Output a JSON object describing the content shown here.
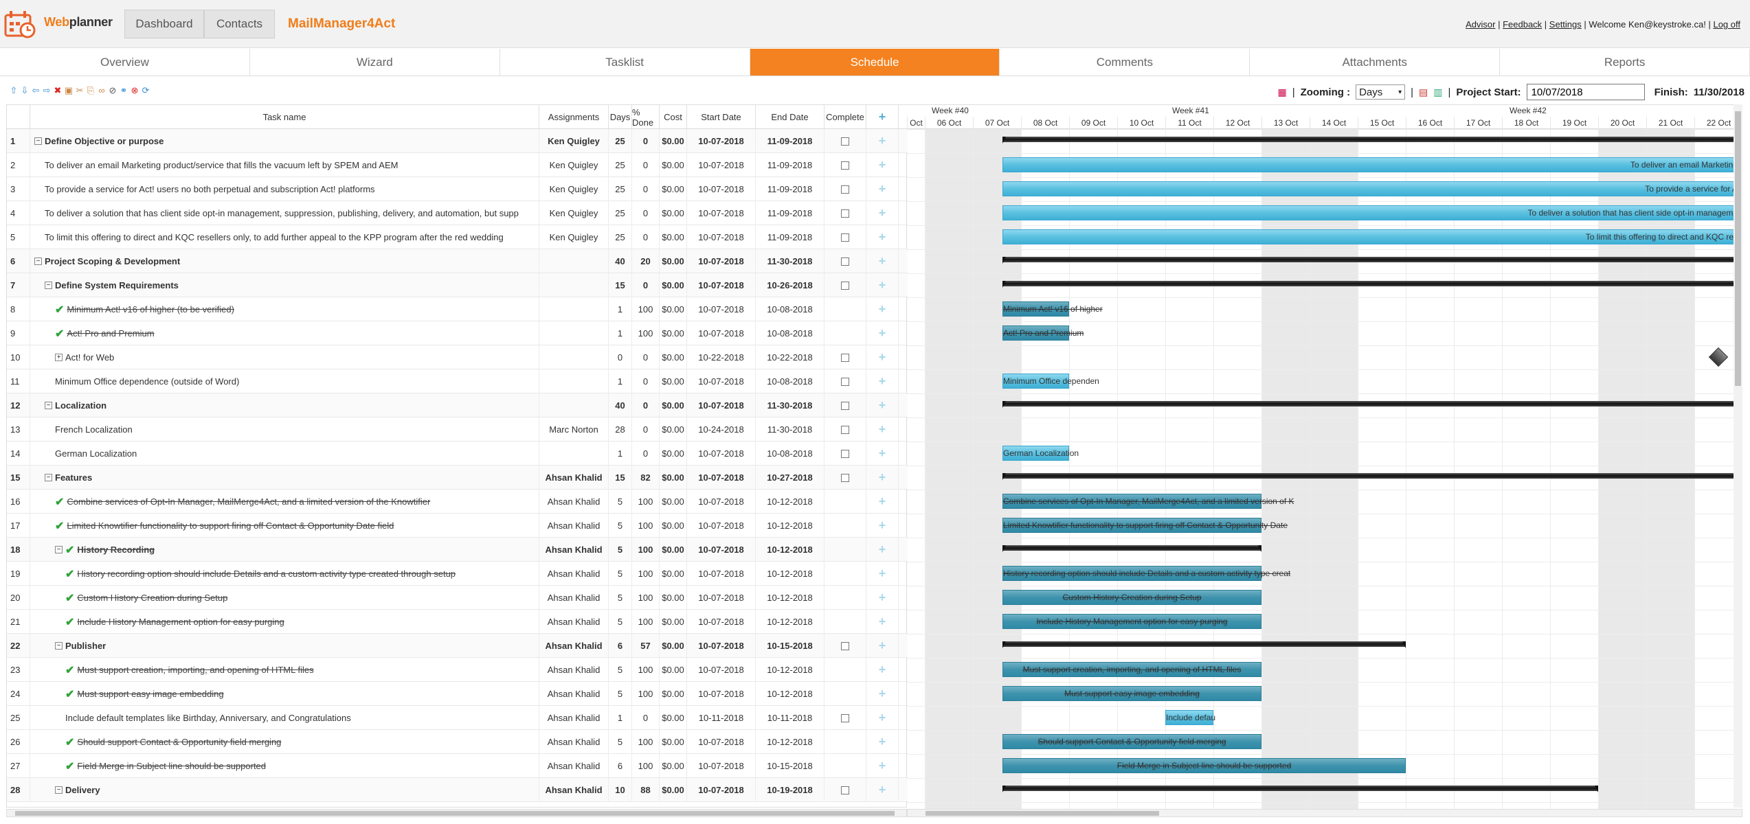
{
  "brand": {
    "logo_text_a": "Web",
    "logo_text_b": "planner",
    "app_title": "MailManager4Act"
  },
  "topnav": {
    "dashboard": "Dashboard",
    "contacts": "Contacts"
  },
  "user_links": {
    "advisor": "Advisor",
    "feedback": "Feedback",
    "settings": "Settings",
    "welcome": "Welcome Ken@keystroke.ca!",
    "logoff": "Log off"
  },
  "tabs": [
    {
      "label": "Overview"
    },
    {
      "label": "Wizard"
    },
    {
      "label": "Tasklist"
    },
    {
      "label": "Schedule",
      "active": true
    },
    {
      "label": "Comments"
    },
    {
      "label": "Attachments"
    },
    {
      "label": "Reports"
    }
  ],
  "toolbar": {
    "icons": [
      "move-up-icon",
      "move-down-icon",
      "outdent-icon",
      "indent-icon",
      "delete-icon",
      "copy-icon",
      "cut-icon",
      "paste-icon",
      "link-icon",
      "unlink-icon",
      "chain-icon",
      "remove-link-icon",
      "refresh-icon"
    ],
    "zooming_label": "Zooming :",
    "zoom_value": "Days",
    "project_start_label": "Project Start:",
    "project_start_value": "10/07/2018",
    "finish_label": "Finish:",
    "finish_value": "11/30/2018"
  },
  "grid": {
    "headers": {
      "name": "Task name",
      "assignments": "Assignments",
      "days": "Days",
      "pct": "% Done",
      "cost": "Cost",
      "start": "Start Date",
      "end": "End Date",
      "complete": "Complete"
    },
    "rows": [
      {
        "num": "1",
        "level": 0,
        "exp": "−",
        "name": "Define Objective or purpose",
        "asg": "Ken Quigley",
        "days": "25",
        "pct": "0",
        "cost": "$0.00",
        "start": "10-07-2018",
        "end": "11-09-2018",
        "summary": true,
        "done": false,
        "box": true
      },
      {
        "num": "2",
        "level": 1,
        "name": "To deliver an email Marketing product/service that fills the vacuum left by SPEM and AEM",
        "asg": "Ken Quigley",
        "days": "25",
        "pct": "0",
        "cost": "$0.00",
        "start": "10-07-2018",
        "end": "11-09-2018",
        "box": true
      },
      {
        "num": "3",
        "level": 1,
        "name": "To provide a service for Act! users no both perpetual and subscription Act! platforms",
        "asg": "Ken Quigley",
        "days": "25",
        "pct": "0",
        "cost": "$0.00",
        "start": "10-07-2018",
        "end": "11-09-2018",
        "box": true
      },
      {
        "num": "4",
        "level": 1,
        "name": "To deliver a solution that has client side opt-in management, suppression, publishing, delivery, and automation, but supp",
        "asg": "Ken Quigley",
        "days": "25",
        "pct": "0",
        "cost": "$0.00",
        "start": "10-07-2018",
        "end": "11-09-2018",
        "box": true
      },
      {
        "num": "5",
        "level": 1,
        "name": "To limit this offering to direct and KQC resellers only, to add further appeal to the KPP program after the red wedding",
        "asg": "Ken Quigley",
        "days": "25",
        "pct": "0",
        "cost": "$0.00",
        "start": "10-07-2018",
        "end": "11-09-2018",
        "box": true
      },
      {
        "num": "6",
        "level": 0,
        "exp": "−",
        "name": "Project Scoping & Development",
        "asg": "",
        "days": "40",
        "pct": "20",
        "cost": "$0.00",
        "start": "10-07-2018",
        "end": "11-30-2018",
        "summary": true,
        "box": true
      },
      {
        "num": "7",
        "level": 1,
        "exp": "−",
        "name": "Define System Requirements",
        "asg": "",
        "days": "15",
        "pct": "0",
        "cost": "$0.00",
        "start": "10-07-2018",
        "end": "10-26-2018",
        "summary": true,
        "box": true
      },
      {
        "num": "8",
        "level": 2,
        "name": "Minimum Act! v16 of higher (to be verified)",
        "asg": "",
        "days": "1",
        "pct": "100",
        "cost": "$0.00",
        "start": "10-07-2018",
        "end": "10-08-2018",
        "done": true
      },
      {
        "num": "9",
        "level": 2,
        "name": "Act! Pro and Premium",
        "asg": "",
        "days": "1",
        "pct": "100",
        "cost": "$0.00",
        "start": "10-07-2018",
        "end": "10-08-2018",
        "done": true
      },
      {
        "num": "10",
        "level": 2,
        "exp": "+",
        "name": "Act! for Web",
        "asg": "",
        "days": "0",
        "pct": "0",
        "cost": "$0.00",
        "start": "10-22-2018",
        "end": "10-22-2018",
        "box": true
      },
      {
        "num": "11",
        "level": 2,
        "name": "Minimum Office dependence (outside of Word)",
        "asg": "",
        "days": "1",
        "pct": "0",
        "cost": "$0.00",
        "start": "10-07-2018",
        "end": "10-08-2018",
        "box": true
      },
      {
        "num": "12",
        "level": 1,
        "exp": "−",
        "name": "Localization",
        "asg": "",
        "days": "40",
        "pct": "0",
        "cost": "$0.00",
        "start": "10-07-2018",
        "end": "11-30-2018",
        "summary": true,
        "box": true
      },
      {
        "num": "13",
        "level": 2,
        "name": "French Localization",
        "asg": "Marc Norton",
        "days": "28",
        "pct": "0",
        "cost": "$0.00",
        "start": "10-24-2018",
        "end": "11-30-2018",
        "box": true
      },
      {
        "num": "14",
        "level": 2,
        "name": "German Localization",
        "asg": "",
        "days": "1",
        "pct": "0",
        "cost": "$0.00",
        "start": "10-07-2018",
        "end": "10-08-2018",
        "box": true
      },
      {
        "num": "15",
        "level": 1,
        "exp": "−",
        "name": "Features",
        "asg": "Ahsan Khalid",
        "days": "15",
        "pct": "82",
        "cost": "$0.00",
        "start": "10-07-2018",
        "end": "10-27-2018",
        "summary": true,
        "box": true
      },
      {
        "num": "16",
        "level": 2,
        "name": "Combine services of Opt-In Manager, MailMerge4Act, and a limited version of the Knowtifier",
        "asg": "Ahsan Khalid",
        "days": "5",
        "pct": "100",
        "cost": "$0.00",
        "start": "10-07-2018",
        "end": "10-12-2018",
        "done": true
      },
      {
        "num": "17",
        "level": 2,
        "name": "Limited Knowtifier functionality to support firing off Contact & Opportunity Date field",
        "asg": "Ahsan Khalid",
        "days": "5",
        "pct": "100",
        "cost": "$0.00",
        "start": "10-07-2018",
        "end": "10-12-2018",
        "done": true
      },
      {
        "num": "18",
        "level": 2,
        "exp": "−",
        "name": "History Recording",
        "asg": "Ahsan Khalid",
        "days": "5",
        "pct": "100",
        "cost": "$0.00",
        "start": "10-07-2018",
        "end": "10-12-2018",
        "summary": true,
        "done": true
      },
      {
        "num": "19",
        "level": 3,
        "name": "History recording option should include Details and a custom activity type created through setup",
        "asg": "Ahsan Khalid",
        "days": "5",
        "pct": "100",
        "cost": "$0.00",
        "start": "10-07-2018",
        "end": "10-12-2018",
        "done": true
      },
      {
        "num": "20",
        "level": 3,
        "name": "Custom History Creation during Setup",
        "asg": "Ahsan Khalid",
        "days": "5",
        "pct": "100",
        "cost": "$0.00",
        "start": "10-07-2018",
        "end": "10-12-2018",
        "done": true
      },
      {
        "num": "21",
        "level": 3,
        "name": "Include History Management option for easy purging",
        "asg": "Ahsan Khalid",
        "days": "5",
        "pct": "100",
        "cost": "$0.00",
        "start": "10-07-2018",
        "end": "10-12-2018",
        "done": true
      },
      {
        "num": "22",
        "level": 2,
        "exp": "−",
        "name": "Publisher",
        "asg": "Ahsan Khalid",
        "days": "6",
        "pct": "57",
        "cost": "$0.00",
        "start": "10-07-2018",
        "end": "10-15-2018",
        "summary": true,
        "box": true
      },
      {
        "num": "23",
        "level": 3,
        "name": "Must support creation, importing, and opening of HTML files",
        "asg": "Ahsan Khalid",
        "days": "5",
        "pct": "100",
        "cost": "$0.00",
        "start": "10-07-2018",
        "end": "10-12-2018",
        "done": true
      },
      {
        "num": "24",
        "level": 3,
        "name": "Must support easy image embedding",
        "asg": "Ahsan Khalid",
        "days": "5",
        "pct": "100",
        "cost": "$0.00",
        "start": "10-07-2018",
        "end": "10-12-2018",
        "done": true
      },
      {
        "num": "25",
        "level": 3,
        "name": "Include default templates like Birthday, Anniversary, and Congratulations",
        "asg": "Ahsan Khalid",
        "days": "1",
        "pct": "0",
        "cost": "$0.00",
        "start": "10-11-2018",
        "end": "10-11-2018",
        "box": true
      },
      {
        "num": "26",
        "level": 3,
        "name": "Should support Contact & Opportunity field merging",
        "asg": "Ahsan Khalid",
        "days": "5",
        "pct": "100",
        "cost": "$0.00",
        "start": "10-07-2018",
        "end": "10-12-2018",
        "done": true
      },
      {
        "num": "27",
        "level": 3,
        "name": "Field Merge in Subject line should be supported",
        "asg": "Ahsan Khalid",
        "days": "6",
        "pct": "100",
        "cost": "$0.00",
        "start": "10-07-2018",
        "end": "10-15-2018",
        "done": true
      },
      {
        "num": "28",
        "level": 2,
        "exp": "−",
        "name": "Delivery",
        "asg": "Ahsan Khalid",
        "days": "10",
        "pct": "88",
        "cost": "$0.00",
        "start": "10-07-2018",
        "end": "10-19-2018",
        "summary": true,
        "box": true
      }
    ]
  },
  "gantt": {
    "weeks": [
      "Week #40",
      "Week #41",
      "Week #42"
    ],
    "first_day_label": "Oct",
    "days": [
      "06 Oct",
      "07 Oct",
      "08 Oct",
      "09 Oct",
      "10 Oct",
      "11 Oct",
      "12 Oct",
      "13 Oct",
      "14 Oct",
      "15 Oct",
      "16 Oct",
      "17 Oct",
      "18 Oct",
      "19 Oct",
      "20 Oct",
      "21 Oct",
      "22 Oct"
    ],
    "weekend_days": [
      "06 Oct",
      "07 Oct",
      "13 Oct",
      "14 Oct",
      "20 Oct",
      "21 Oct"
    ],
    "bars": [
      {
        "row": 1,
        "type": "summary",
        "from": "07 Oct",
        "to": "open"
      },
      {
        "row": 2,
        "type": "task",
        "from": "07 Oct",
        "to": "open",
        "label": "To deliver an email Marketing"
      },
      {
        "row": 3,
        "type": "task",
        "from": "07 Oct",
        "to": "open",
        "label": "To provide a service for A"
      },
      {
        "row": 4,
        "type": "task",
        "from": "07 Oct",
        "to": "open",
        "label": "To deliver a solution that has client side opt-in manageme"
      },
      {
        "row": 5,
        "type": "task",
        "from": "07 Oct",
        "to": "open",
        "label": "To limit this offering to direct and KQC res"
      },
      {
        "row": 6,
        "type": "summary",
        "from": "07 Oct",
        "to": "open"
      },
      {
        "row": 7,
        "type": "summary",
        "from": "07 Oct",
        "to": "open"
      },
      {
        "row": 8,
        "type": "done",
        "from": "07 Oct",
        "to": "08 Oct",
        "label": "Minimum Act! v16 of higher"
      },
      {
        "row": 9,
        "type": "done",
        "from": "07 Oct",
        "to": "08 Oct",
        "label": "Act! Pro and Premium"
      },
      {
        "row": 10,
        "type": "milestone",
        "from": "22 Oct"
      },
      {
        "row": 11,
        "type": "task",
        "from": "07 Oct",
        "to": "08 Oct",
        "label": "Minimum Office dependen"
      },
      {
        "row": 12,
        "type": "summary",
        "from": "07 Oct",
        "to": "open"
      },
      {
        "row": 14,
        "type": "task",
        "from": "07 Oct",
        "to": "08 Oct",
        "label": "German Localization"
      },
      {
        "row": 15,
        "type": "summary",
        "from": "07 Oct",
        "to": "open"
      },
      {
        "row": 16,
        "type": "done",
        "from": "07 Oct",
        "to": "12 Oct",
        "label": "Combine services of Opt-In Manager, MailMerge4Act, and a limited version of K"
      },
      {
        "row": 17,
        "type": "done",
        "from": "07 Oct",
        "to": "12 Oct",
        "label": "Limited Knowtifier functionality to support firing off Contact & Opportunity Date"
      },
      {
        "row": 18,
        "type": "summary",
        "from": "07 Oct",
        "to": "12 Oct"
      },
      {
        "row": 19,
        "type": "done",
        "from": "07 Oct",
        "to": "12 Oct",
        "label": "History recording option should include Details and a custom activity type creat"
      },
      {
        "row": 20,
        "type": "done",
        "from": "07 Oct",
        "to": "12 Oct",
        "label": "Custom History Creation during Setup"
      },
      {
        "row": 21,
        "type": "done",
        "from": "07 Oct",
        "to": "12 Oct",
        "label": "Include History Management option for easy purging"
      },
      {
        "row": 22,
        "type": "summary",
        "from": "07 Oct",
        "to": "15 Oct"
      },
      {
        "row": 23,
        "type": "done",
        "from": "07 Oct",
        "to": "12 Oct",
        "label": "Must support creation, importing, and opening of HTML files"
      },
      {
        "row": 24,
        "type": "done",
        "from": "07 Oct",
        "to": "12 Oct",
        "label": "Must support easy image embedding"
      },
      {
        "row": 25,
        "type": "task",
        "from": "11 Oct",
        "to": "11 Oct",
        "label": "Include defau"
      },
      {
        "row": 26,
        "type": "done",
        "from": "07 Oct",
        "to": "12 Oct",
        "label": "Should support Contact & Opportunity field merging"
      },
      {
        "row": 27,
        "type": "done",
        "from": "07 Oct",
        "to": "15 Oct",
        "label": "Field Merge in Subject line should be supported"
      },
      {
        "row": 28,
        "type": "summary",
        "from": "07 Oct",
        "to": "19 Oct"
      }
    ]
  }
}
